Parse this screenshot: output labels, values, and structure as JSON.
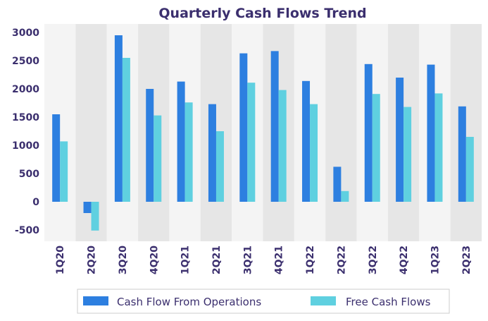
{
  "chart_data": {
    "type": "bar",
    "title": "Quarterly Cash Flows Trend",
    "categories": [
      "1Q20",
      "2Q20",
      "3Q20",
      "4Q20",
      "1Q21",
      "2Q21",
      "3Q21",
      "4Q21",
      "1Q22",
      "2Q22",
      "3Q22",
      "4Q22",
      "1Q23",
      "2Q23"
    ],
    "series": [
      {
        "name": "Cash Flow From Operations",
        "color": "#2d7fe0",
        "values": [
          1550,
          -200,
          2950,
          2000,
          2130,
          1730,
          2630,
          2670,
          2140,
          620,
          2440,
          2200,
          2430,
          1690
        ]
      },
      {
        "name": "Free Cash Flows",
        "color": "#5fd0e0",
        "values": [
          1070,
          -510,
          2550,
          1530,
          1760,
          1250,
          2110,
          1980,
          1730,
          190,
          1910,
          1680,
          1920,
          1150
        ]
      }
    ],
    "yticks": [
      -500,
      0,
      500,
      1000,
      1500,
      2000,
      2500,
      3000
    ],
    "ylim": [
      -700,
      3150
    ],
    "xlabel": "",
    "ylabel": "",
    "grid": false,
    "legend_position": "bottom",
    "band_colors": [
      "#f4f4f4",
      "#e6e6e6"
    ]
  }
}
